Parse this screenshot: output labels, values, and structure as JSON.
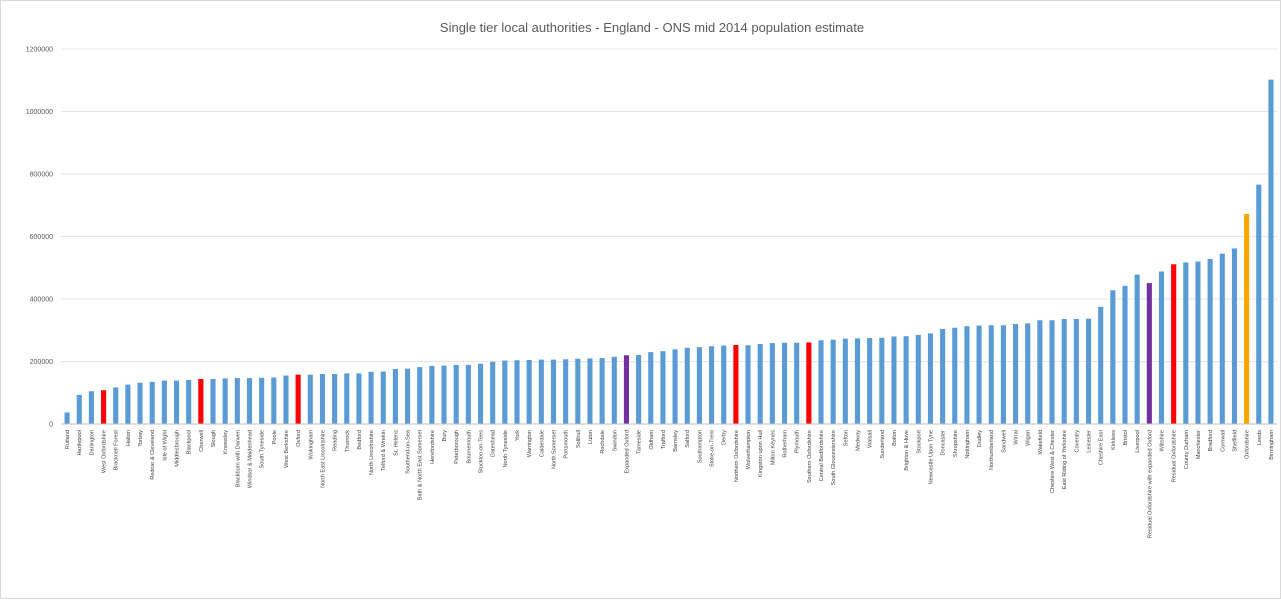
{
  "chart_data": {
    "type": "bar",
    "title": "Single tier local authorities - England - ONS mid 2014 population estimate",
    "xlabel": "",
    "ylabel": "",
    "ylim": [
      0,
      1200000
    ],
    "yticks": [
      "0",
      "200000",
      "400000",
      "600000",
      "800000",
      "1000000",
      "1200000"
    ],
    "grid": true,
    "legend": "none",
    "colors": {
      "default": "#5b9bd5",
      "red": "#ff0000",
      "purple": "#7030a0",
      "orange": "#ffa500"
    },
    "categories": [
      "Rutland",
      "Hartlepool",
      "Darlington",
      "West Oxfordshire",
      "Bracknell Forest",
      "Halton",
      "Torbay",
      "Redcar & Cleveland",
      "Isle of Wight",
      "Middlesbrough",
      "Blackpool",
      "Cherwell",
      "Slough",
      "Knowsley",
      "Blackburn with Darwen",
      "Windsor & Maidenhead",
      "South Tyneside",
      "Poole",
      "West Berkshire",
      "Oxford",
      "Wokingham",
      "North East Lincolnshire",
      "Reading",
      "Thurrock",
      "Bedford",
      "North Lincolnshire",
      "Telford & Wrekin",
      "St. Helens",
      "Southend-on-Sea",
      "Bath & North East Somerset",
      "Herefordshire",
      "Bury",
      "Peterborough",
      "Bournemouth",
      "Stockton-on-Tees",
      "Gateshead",
      "North Tyneside",
      "York",
      "Warrington",
      "Calderdale",
      "North Somerset",
      "Portsmouth",
      "Solihull",
      "Luton",
      "Rochdale",
      "Swindon",
      "Expanded Oxford",
      "Tameside",
      "Oldham",
      "Trafford",
      "Barnsley",
      "Salford",
      "Southampton",
      "Stoke-on-Trent",
      "Derby",
      "Northern Oxfordshire",
      "Wolverhampton",
      "Kingston upon Hull",
      "Milton Keynes",
      "Rotherham",
      "Plymouth",
      "Southern Oxfordshire",
      "Central Bedfordshire",
      "South Gloucestershire",
      "Sefton",
      "Medway",
      "Walsall",
      "Sunderland",
      "Bolton",
      "Brighton & Hove",
      "Stockport",
      "Newcastle Upon Tyne",
      "Doncaster",
      "Shropshire",
      "Nottingham",
      "Dudley",
      "Northumberland",
      "Sandwell",
      "Wirral",
      "Wigan",
      "Wakefield",
      "Cheshire West & Chester",
      "East Riding of Yorkshire",
      "Coventry",
      "Leicester",
      "Cheshire East",
      "Kirklees",
      "Bristol",
      "Liverpool",
      "Residual Oxfordshire with expanded Oxford",
      "Wiltshire",
      "Residual Oxfordshire",
      "County Durham",
      "Manchester",
      "Bradford",
      "Cornwall",
      "Sheffield",
      "Oxfordshire",
      "Leeds",
      "Birmingham"
    ],
    "values": [
      37000,
      93000,
      105000,
      108000,
      117000,
      126000,
      132000,
      135000,
      139000,
      139000,
      141000,
      144000,
      144000,
      146000,
      147000,
      147000,
      148000,
      149000,
      155000,
      158000,
      158000,
      160000,
      160000,
      162000,
      162000,
      167000,
      168000,
      176000,
      177000,
      182000,
      186000,
      187000,
      189000,
      189000,
      193000,
      199000,
      203000,
      204000,
      205000,
      206000,
      206000,
      207000,
      209000,
      210000,
      211000,
      215000,
      220000,
      221000,
      230000,
      233000,
      239000,
      244000,
      246000,
      249000,
      251000,
      253000,
      252000,
      256000,
      259000,
      260000,
      260000,
      261000,
      268000,
      270000,
      273000,
      274000,
      275000,
      276000,
      280000,
      281000,
      285000,
      290000,
      304000,
      308000,
      313000,
      315000,
      316000,
      316000,
      320000,
      322000,
      332000,
      332000,
      336000,
      336000,
      337000,
      375000,
      428000,
      442000,
      478000,
      451000,
      488000,
      511000,
      517000,
      520000,
      528000,
      545000,
      562000,
      672000,
      766000,
      1102000
    ],
    "bar_colors": [
      "default",
      "default",
      "default",
      "red",
      "default",
      "default",
      "default",
      "default",
      "default",
      "default",
      "default",
      "red",
      "default",
      "default",
      "default",
      "default",
      "default",
      "default",
      "default",
      "red",
      "default",
      "default",
      "default",
      "default",
      "default",
      "default",
      "default",
      "default",
      "default",
      "default",
      "default",
      "default",
      "default",
      "default",
      "default",
      "default",
      "default",
      "default",
      "default",
      "default",
      "default",
      "default",
      "default",
      "default",
      "default",
      "default",
      "purple",
      "default",
      "default",
      "default",
      "default",
      "default",
      "default",
      "default",
      "default",
      "red",
      "default",
      "default",
      "default",
      "default",
      "default",
      "red",
      "default",
      "default",
      "default",
      "default",
      "default",
      "default",
      "default",
      "default",
      "default",
      "default",
      "default",
      "default",
      "default",
      "default",
      "default",
      "default",
      "default",
      "default",
      "default",
      "default",
      "default",
      "default",
      "default",
      "default",
      "default",
      "default",
      "default",
      "purple",
      "default",
      "red",
      "default",
      "default",
      "default",
      "default",
      "default",
      "orange",
      "default",
      "default"
    ]
  }
}
